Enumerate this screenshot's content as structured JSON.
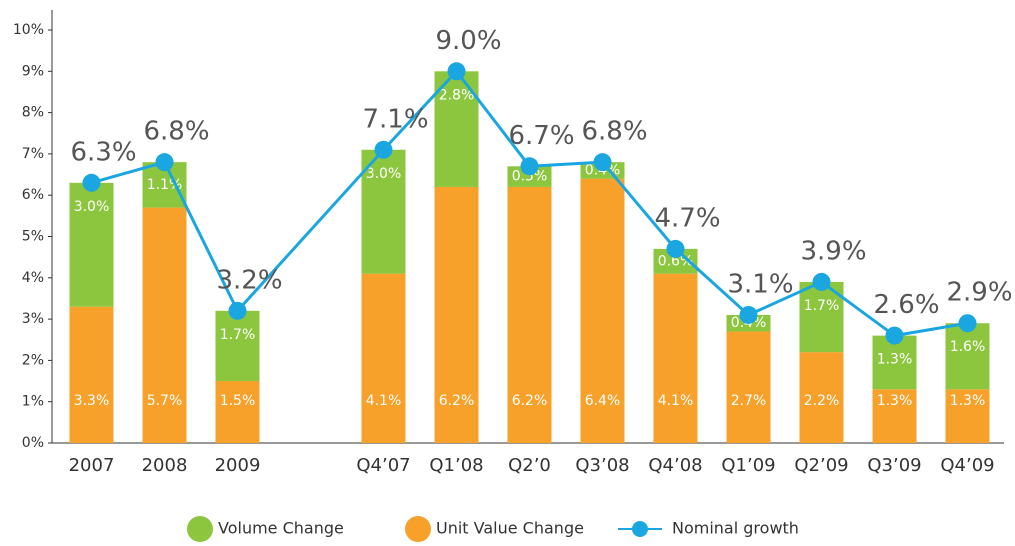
{
  "chart_data": {
    "type": "bar",
    "categories": [
      "2007",
      "2008",
      "2009",
      null,
      "Q4’07",
      "Q1’08",
      "Q2’0",
      "Q3’08",
      "Q4’08",
      "Q1’09",
      "Q2’09",
      "Q3’09",
      "Q4’09"
    ],
    "series": [
      {
        "name": "Unit Value Change",
        "color": "#f7a12a",
        "type": "bar",
        "values": [
          3.3,
          5.7,
          1.5,
          null,
          4.1,
          6.2,
          6.2,
          6.4,
          4.1,
          2.7,
          2.2,
          1.3,
          1.3
        ],
        "value_labels": [
          "3.3%",
          "5.7%",
          "1.5%",
          null,
          "4.1%",
          "6.2%",
          "6.2%",
          "6.4%",
          "4.1%",
          "2.7%",
          "2.2%",
          "1.3%",
          "1.3%"
        ]
      },
      {
        "name": "Volume Change",
        "color": "#8cc63f",
        "type": "bar",
        "values": [
          3.0,
          1.1,
          1.7,
          null,
          3.0,
          2.8,
          0.5,
          0.4,
          0.6,
          0.4,
          1.7,
          1.3,
          1.6
        ],
        "value_labels": [
          "3.0%",
          "1.1%",
          "1.7%",
          null,
          "3.0%",
          "2.8%",
          "0.5%",
          "0.4%",
          "0.6%",
          "0.4%",
          "1.7%",
          "1.3%",
          "1.6%"
        ]
      },
      {
        "name": "Nominal growth",
        "color": "#1aa6e0",
        "type": "line",
        "values": [
          6.3,
          6.8,
          3.2,
          null,
          7.1,
          9.0,
          6.7,
          6.8,
          4.7,
          3.1,
          3.9,
          2.6,
          2.9
        ],
        "value_labels": [
          "6.3%",
          "6.8%",
          "3.2%",
          null,
          "7.1%",
          "9.0%",
          "6.7%",
          "6.8%",
          "4.7%",
          "3.1%",
          "3.9%",
          "2.6%",
          "2.9%"
        ]
      }
    ],
    "stacked": true,
    "ylim": [
      0,
      10
    ],
    "yticks": [
      {
        "value": 0,
        "label": "0%"
      },
      {
        "value": 1,
        "label": "1%"
      },
      {
        "value": 2,
        "label": "2%"
      },
      {
        "value": 3,
        "label": "3%"
      },
      {
        "value": 4,
        "label": "4%"
      },
      {
        "value": 5,
        "label": "5%"
      },
      {
        "value": 6,
        "label": "6%"
      },
      {
        "value": 7,
        "label": "7%"
      },
      {
        "value": 8,
        "label": "8%"
      },
      {
        "value": 9,
        "label": "9%"
      },
      {
        "value": 10,
        "label": "10%"
      }
    ],
    "grid": false,
    "legend": "bottom"
  }
}
